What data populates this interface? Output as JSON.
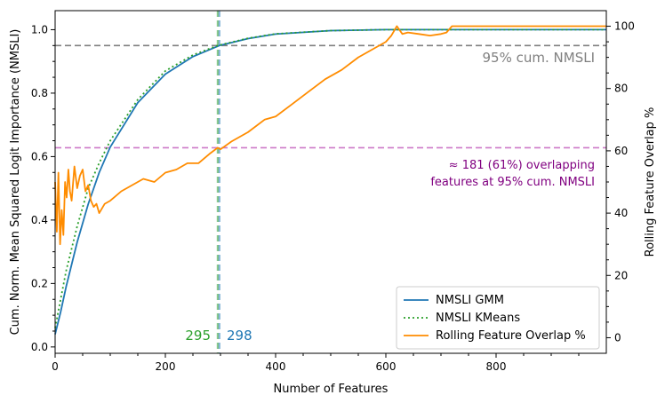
{
  "chart_data": {
    "type": "line",
    "xlabel": "Number of Features",
    "ylabel_left": "Cum. Norm. Mean Squared Logit Importance (NMSLI)",
    "ylabel_right": "Rolling Feature Overlap %",
    "xlim": [
      0,
      1000
    ],
    "ylim_left": [
      -0.02,
      1.06
    ],
    "ylim_right": [
      -5,
      105
    ],
    "x_ticks": [
      0,
      200,
      400,
      600,
      800
    ],
    "x_tick_labels": [
      "0",
      "200",
      "400",
      "600",
      "800"
    ],
    "y_left_ticks": [
      0.0,
      0.2,
      0.4,
      0.6,
      0.8,
      1.0
    ],
    "y_left_tick_labels": [
      "0.0",
      "0.2",
      "0.4",
      "0.6",
      "0.8",
      "1.0"
    ],
    "y_right_ticks": [
      0,
      20,
      40,
      60,
      80,
      100
    ],
    "y_right_tick_labels": [
      "0",
      "20",
      "40",
      "60",
      "80",
      "100"
    ],
    "grid": false,
    "legend_position": "lower-right",
    "series": [
      {
        "name": "NMSLI GMM",
        "axis": "left",
        "color": "#1f77b4",
        "style": "solid",
        "x": [
          0,
          10,
          20,
          40,
          60,
          80,
          100,
          150,
          200,
          250,
          298,
          350,
          400,
          500,
          600,
          700,
          800,
          1000
        ],
        "y": [
          0.04,
          0.11,
          0.19,
          0.33,
          0.45,
          0.55,
          0.63,
          0.77,
          0.86,
          0.915,
          0.95,
          0.972,
          0.986,
          0.997,
          1.0,
          1.0,
          1.0,
          1.0
        ]
      },
      {
        "name": "NMSLI KMeans",
        "axis": "left",
        "color": "#2ca02c",
        "style": "dotted",
        "x": [
          0,
          10,
          20,
          40,
          60,
          80,
          100,
          150,
          200,
          250,
          295,
          350,
          400,
          500,
          600,
          700,
          800,
          1000
        ],
        "y": [
          0.06,
          0.15,
          0.24,
          0.38,
          0.5,
          0.58,
          0.65,
          0.78,
          0.87,
          0.92,
          0.95,
          0.973,
          0.987,
          0.997,
          1.0,
          1.0,
          1.0,
          1.0
        ]
      },
      {
        "name": "Rolling Feature Overlap %",
        "axis": "right",
        "color": "#ff8c00",
        "style": "solid",
        "x": [
          0,
          3,
          6,
          9,
          12,
          15,
          18,
          21,
          24,
          27,
          30,
          35,
          40,
          45,
          50,
          55,
          60,
          65,
          70,
          75,
          80,
          90,
          100,
          120,
          140,
          160,
          180,
          200,
          220,
          240,
          260,
          280,
          295,
          300,
          320,
          350,
          380,
          400,
          430,
          460,
          490,
          520,
          550,
          580,
          600,
          610,
          620,
          630,
          640,
          660,
          680,
          700,
          710,
          720,
          800,
          900,
          1000
        ],
        "y": [
          50,
          34,
          53,
          30,
          41,
          33,
          50,
          45,
          54,
          47,
          44,
          55,
          48,
          52,
          54,
          47,
          49,
          44,
          42,
          43,
          40,
          43,
          44,
          47,
          49,
          51,
          50,
          53,
          54,
          56,
          56,
          59,
          61,
          60.5,
          63,
          66,
          70,
          71,
          75,
          79,
          83,
          86,
          90,
          93,
          95,
          97,
          100,
          97.5,
          98,
          97.5,
          97,
          97.5,
          98,
          100,
          100,
          100,
          100
        ]
      }
    ],
    "reference_lines": [
      {
        "orientation": "horizontal",
        "axis": "left",
        "value": 0.95,
        "color": "#808080",
        "style": "dashed",
        "label": "95% cum. NMSLI"
      },
      {
        "orientation": "horizontal",
        "axis": "right",
        "value": 61,
        "color": "#cc79c7",
        "style": "dashed"
      },
      {
        "orientation": "vertical",
        "value": 295,
        "color": "#2ca02c",
        "style": "dashed"
      },
      {
        "orientation": "vertical",
        "value": 298,
        "color": "#1f77b4",
        "style": "dashed"
      }
    ],
    "annotations": [
      {
        "text": "95% cum. NMSLI",
        "color": "#808080"
      },
      {
        "line1": "≈ 181 (61%) overlapping",
        "line2": "features at 95% cum. NMSLI",
        "color": "#800080"
      },
      {
        "text": "295",
        "color": "#2ca02c"
      },
      {
        "text": "298",
        "color": "#1f77b4"
      }
    ]
  }
}
